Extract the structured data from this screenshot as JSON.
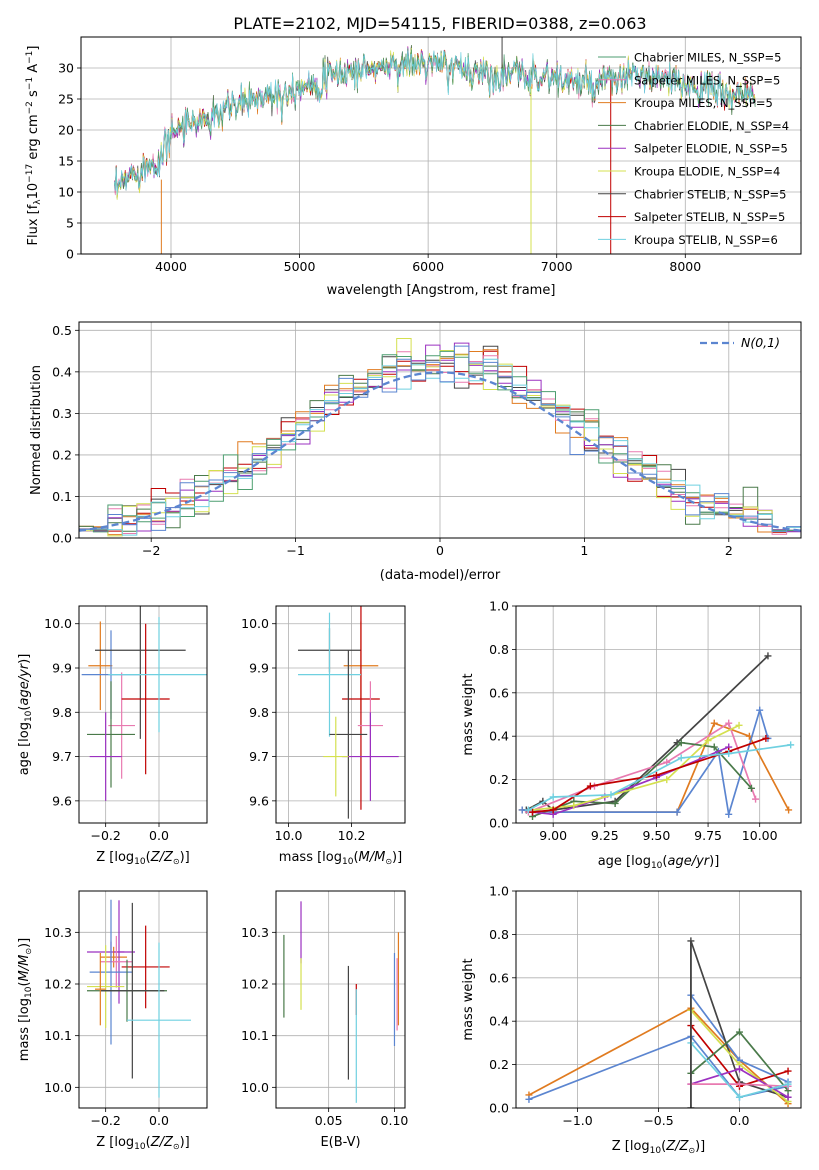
{
  "figure_title": "PLATE=2102, MJD=54115, FIBERID=0388, z=0.063",
  "colors": {
    "chabrier_miles": "#4d9e70",
    "salpeter_miles": "#e87ab0",
    "kroupa_miles": "#e07b20",
    "chabrier_elodie": "#4a7a4a",
    "salpeter_elodie": "#9b30c0",
    "kroupa_elodie": "#d4e050",
    "chabrier_stelib": "#444444",
    "salpeter_stelib": "#c00000",
    "kroupa_stelib": "#6fd0e0",
    "blue": "#5b85d0",
    "gaussian": "#5b85d0",
    "grid": "#b0b0b0"
  },
  "chart_data": [
    {
      "id": "spectrum",
      "type": "line",
      "xlabel": "wavelength [Angstrom, rest frame]",
      "ylabel": "Flux [f_λ 10^-17 erg cm^-2 s^-1 A^-1]",
      "xlim": [
        3300,
        8900
      ],
      "ylim": [
        0,
        35
      ],
      "xticks": [
        4000,
        5000,
        6000,
        7000,
        8000
      ],
      "yticks": [
        0,
        5,
        10,
        15,
        20,
        25,
        30
      ],
      "legend_position": "top-right",
      "legend": [
        {
          "label": "Chabrier MILES, N_SSP=5",
          "color_key": "chabrier_miles"
        },
        {
          "label": "Salpeter MILES, N_SSP=5",
          "color_key": "salpeter_miles"
        },
        {
          "label": "Kroupa MILES, N_SSP=5",
          "color_key": "kroupa_miles"
        },
        {
          "label": "Chabrier ELODIE, N_SSP=4",
          "color_key": "chabrier_elodie"
        },
        {
          "label": "Salpeter ELODIE, N_SSP=5",
          "color_key": "salpeter_elodie"
        },
        {
          "label": "Kroupa ELODIE, N_SSP=4",
          "color_key": "kroupa_elodie"
        },
        {
          "label": "Chabrier STELIB, N_SSP=5",
          "color_key": "chabrier_stelib"
        },
        {
          "label": "Salpeter STELIB, N_SSP=5",
          "color_key": "salpeter_stelib"
        },
        {
          "label": "Kroupa STELIB, N_SSP=6",
          "color_key": "kroupa_stelib"
        }
      ],
      "continuum": [
        [
          3560,
          10
        ],
        [
          3700,
          13
        ],
        [
          3900,
          15
        ],
        [
          3950,
          19
        ],
        [
          4100,
          21
        ],
        [
          4300,
          22
        ],
        [
          4500,
          24
        ],
        [
          4800,
          26
        ],
        [
          5000,
          27
        ],
        [
          5300,
          29
        ],
        [
          5600,
          30
        ],
        [
          5900,
          31
        ],
        [
          6200,
          30
        ],
        [
          6500,
          29
        ],
        [
          6800,
          29
        ],
        [
          7100,
          28
        ],
        [
          7300,
          27
        ],
        [
          7600,
          29
        ],
        [
          7800,
          28
        ],
        [
          8100,
          27
        ],
        [
          8300,
          26
        ],
        [
          8550,
          25
        ]
      ]
    },
    {
      "id": "residual_hist",
      "type": "histogram",
      "xlabel": "(data-model)/error",
      "ylabel": "Normed distribution",
      "xlim": [
        -2.5,
        2.5
      ],
      "ylim": [
        0,
        0.52
      ],
      "xticks": [
        -2,
        -1,
        0,
        1,
        2
      ],
      "yticks": [
        0.0,
        0.1,
        0.2,
        0.3,
        0.4,
        0.5
      ],
      "gaussian_label": "N(0,1)",
      "legend_position": "top-right",
      "bin_width": 0.1
    },
    {
      "id": "age_vs_Z",
      "type": "errorbar",
      "xlabel": "Z [log10(Z/Z_sun)]",
      "ylabel": "age [log10(age/yr)]",
      "xlim": [
        -0.3,
        0.18
      ],
      "ylim": [
        9.55,
        10.04
      ],
      "xticks": [
        -0.2,
        0.0
      ],
      "yticks": [
        9.6,
        9.7,
        9.8,
        9.9,
        10.0
      ],
      "points": [
        {
          "x": -0.22,
          "y": 9.905,
          "xerr": 0.045,
          "yerr": 0.1,
          "color_key": "kroupa_miles"
        },
        {
          "x": -0.18,
          "y": 9.885,
          "xerr": 0.11,
          "yerr": 0.1,
          "color_key": "blue"
        },
        {
          "x": -0.14,
          "y": 9.77,
          "xerr": 0.05,
          "yerr": 0.12,
          "color_key": "salpeter_miles"
        },
        {
          "x": -0.18,
          "y": 9.75,
          "xerr": 0.09,
          "yerr": 0.12,
          "color_key": "chabrier_elodie"
        },
        {
          "x": -0.2,
          "y": 9.7,
          "xerr": 0.06,
          "yerr": 0.1,
          "color_key": "salpeter_elodie"
        },
        {
          "x": -0.07,
          "y": 9.94,
          "xerr": 0.17,
          "yerr": 0.2,
          "color_key": "chabrier_stelib"
        },
        {
          "x": -0.05,
          "y": 9.83,
          "xerr": 0.09,
          "yerr": 0.17,
          "color_key": "salpeter_stelib"
        },
        {
          "x": 0.0,
          "y": 9.885,
          "xerr": 0.19,
          "yerr": 0.13,
          "color_key": "kroupa_stelib"
        }
      ]
    },
    {
      "id": "age_vs_mass",
      "type": "errorbar",
      "xlabel": "mass [log10(M/M_sun)]",
      "ylabel": "",
      "xlim": [
        9.96,
        10.37
      ],
      "ylim": [
        9.55,
        10.04
      ],
      "xticks": [
        10.0,
        10.2
      ],
      "yticks": [
        9.6,
        9.7,
        9.8,
        9.9,
        10.0
      ],
      "points": [
        {
          "x": 10.23,
          "y": 9.905,
          "xerr": 0.055,
          "yerr": 0.1,
          "color_key": "kroupa_miles"
        },
        {
          "x": 10.13,
          "y": 9.94,
          "xerr": 0.1,
          "yerr": 0.05,
          "color_key": "chabrier_stelib"
        },
        {
          "x": 10.23,
          "y": 9.83,
          "xerr": 0.06,
          "yerr": 0.25,
          "color_key": "salpeter_stelib"
        },
        {
          "x": 10.13,
          "y": 9.885,
          "xerr": 0.1,
          "yerr": 0.14,
          "color_key": "kroupa_stelib"
        },
        {
          "x": 10.26,
          "y": 9.77,
          "xerr": 0.04,
          "yerr": 0.1,
          "color_key": "salpeter_miles"
        },
        {
          "x": 10.19,
          "y": 9.75,
          "xerr": 0.06,
          "yerr": 0.19,
          "color_key": "chabrier_stelib"
        },
        {
          "x": 10.26,
          "y": 9.7,
          "xerr": 0.09,
          "yerr": 0.1,
          "color_key": "salpeter_elodie"
        },
        {
          "x": 10.15,
          "y": 9.7,
          "xerr": 0.04,
          "yerr": 0.09,
          "color_key": "kroupa_elodie"
        }
      ]
    },
    {
      "id": "massweight_vs_age",
      "type": "line",
      "xlabel": "age [log10(age/yr)]",
      "ylabel": "mass weight",
      "xlim": [
        8.82,
        10.2
      ],
      "ylim": [
        0,
        1.0
      ],
      "xticks": [
        9.0,
        9.25,
        9.5,
        9.75,
        10.0
      ],
      "yticks": [
        0.0,
        0.2,
        0.4,
        0.6,
        0.8,
        1.0
      ],
      "series": [
        {
          "color_key": "chabrier_stelib",
          "x": [
            8.87,
            8.95,
            9.0,
            9.3,
            9.6,
            10.04
          ],
          "y": [
            0.06,
            0.1,
            0.06,
            0.1,
            0.37,
            0.77
          ]
        },
        {
          "color_key": "kroupa_miles",
          "x": [
            8.85,
            9.0,
            9.6,
            9.78,
            9.95,
            10.14
          ],
          "y": [
            0.06,
            0.05,
            0.05,
            0.46,
            0.4,
            0.06
          ]
        },
        {
          "color_key": "blue",
          "x": [
            8.85,
            9.0,
            9.6,
            9.8,
            9.85,
            10.0,
            10.04
          ],
          "y": [
            0.06,
            0.05,
            0.05,
            0.33,
            0.04,
            0.52,
            0.39
          ]
        },
        {
          "color_key": "salpeter_miles",
          "x": [
            8.88,
            9.2,
            9.55,
            9.85,
            9.98
          ],
          "y": [
            0.05,
            0.17,
            0.28,
            0.46,
            0.11
          ]
        },
        {
          "color_key": "chabrier_elodie",
          "x": [
            8.9,
            9.1,
            9.3,
            9.62,
            9.78,
            9.96
          ],
          "y": [
            0.03,
            0.1,
            0.09,
            0.37,
            0.35,
            0.16
          ]
        },
        {
          "color_key": "salpeter_elodie",
          "x": [
            8.9,
            9.0,
            9.25,
            9.5,
            9.85
          ],
          "y": [
            0.05,
            0.04,
            0.12,
            0.21,
            0.35
          ]
        },
        {
          "color_key": "kroupa_elodie",
          "x": [
            8.9,
            9.1,
            9.55,
            9.75,
            9.9
          ],
          "y": [
            0.06,
            0.08,
            0.2,
            0.38,
            0.45
          ]
        },
        {
          "color_key": "salpeter_stelib",
          "x": [
            8.9,
            9.0,
            9.18,
            9.5,
            9.85,
            10.03
          ],
          "y": [
            0.05,
            0.06,
            0.17,
            0.22,
            0.33,
            0.39
          ]
        },
        {
          "color_key": "kroupa_stelib",
          "x": [
            8.88,
            9.0,
            9.28,
            9.62,
            9.85,
            10.15
          ],
          "y": [
            0.06,
            0.12,
            0.13,
            0.3,
            0.32,
            0.36
          ]
        }
      ]
    },
    {
      "id": "mass_vs_Z",
      "type": "errorbar",
      "xlabel": "Z [log10(Z/Z_sun)]",
      "ylabel": "mass [log10(M/M_sun)]",
      "xlim": [
        -0.3,
        0.18
      ],
      "ylim": [
        9.96,
        10.38
      ],
      "xticks": [
        -0.2,
        0.0
      ],
      "yticks": [
        10.0,
        10.1,
        10.2,
        10.3
      ],
      "points": [
        {
          "x": -0.18,
          "y": 10.262,
          "xerr": 0.09,
          "yerr": 0.02,
          "color_key": "salpeter_elodie"
        },
        {
          "x": -0.17,
          "y": 10.252,
          "xerr": 0.05,
          "yerr": 0.02,
          "color_key": "kroupa_miles"
        },
        {
          "x": -0.15,
          "y": 10.262,
          "xerr": 0.02,
          "yerr": 0.1,
          "color_key": "salpeter_elodie"
        },
        {
          "x": -0.16,
          "y": 10.243,
          "xerr": 0.06,
          "yerr": 0.05,
          "color_key": "salpeter_miles"
        },
        {
          "x": -0.05,
          "y": 10.233,
          "xerr": 0.09,
          "yerr": 0.08,
          "color_key": "salpeter_stelib"
        },
        {
          "x": -0.18,
          "y": 10.223,
          "xerr": 0.08,
          "yerr": 0.14,
          "color_key": "blue"
        },
        {
          "x": -0.2,
          "y": 10.195,
          "xerr": 0.07,
          "yerr": 0.08,
          "color_key": "kroupa_elodie"
        },
        {
          "x": -0.12,
          "y": 10.187,
          "xerr": 0.15,
          "yerr": 0.06,
          "color_key": "chabrier_elodie"
        },
        {
          "x": -0.1,
          "y": 10.187,
          "xerr": 0.12,
          "yerr": 0.17,
          "color_key": "chabrier_stelib"
        },
        {
          "x": 0.0,
          "y": 10.13,
          "xerr": 0.12,
          "yerr": 0.15,
          "color_key": "kroupa_stelib"
        },
        {
          "x": -0.22,
          "y": 10.19,
          "xerr": 0.02,
          "yerr": 0.07,
          "color_key": "kroupa_miles"
        }
      ]
    },
    {
      "id": "mass_vs_EBV",
      "type": "errorbar",
      "xlabel": "E(B-V)",
      "ylabel": "",
      "xlim": [
        0.01,
        0.108
      ],
      "ylim": [
        9.96,
        10.38
      ],
      "xticks": [
        0.05,
        0.1
      ],
      "yticks": [
        10.0,
        10.1,
        10.2,
        10.3
      ],
      "points": [
        {
          "x": 0.016,
          "y": 10.215,
          "xerr": 0,
          "yerr": 0.08,
          "color_key": "chabrier_elodie"
        },
        {
          "x": 0.029,
          "y": 10.3,
          "xerr": 0,
          "yerr": 0.06,
          "color_key": "salpeter_elodie"
        },
        {
          "x": 0.029,
          "y": 10.2,
          "xerr": 0,
          "yerr": 0.05,
          "color_key": "kroupa_elodie"
        },
        {
          "x": 0.065,
          "y": 10.125,
          "xerr": 0,
          "yerr": 0.11,
          "color_key": "chabrier_stelib"
        },
        {
          "x": 0.071,
          "y": 10.17,
          "xerr": 0,
          "yerr": 0.03,
          "color_key": "salpeter_stelib"
        },
        {
          "x": 0.071,
          "y": 10.08,
          "xerr": 0,
          "yerr": 0.11,
          "color_key": "kroupa_stelib"
        },
        {
          "x": 0.1,
          "y": 10.17,
          "xerr": 0,
          "yerr": 0.09,
          "color_key": "blue"
        },
        {
          "x": 0.103,
          "y": 10.21,
          "xerr": 0,
          "yerr": 0.09,
          "color_key": "kroupa_miles"
        },
        {
          "x": 0.102,
          "y": 10.18,
          "xerr": 0,
          "yerr": 0.07,
          "color_key": "salpeter_miles"
        }
      ]
    },
    {
      "id": "massweight_vs_Z",
      "type": "line",
      "xlabel": "Z [log10(Z/Z_sun)]",
      "ylabel": "mass weight",
      "xlim": [
        -1.38,
        0.38
      ],
      "ylim": [
        0,
        1.0
      ],
      "xticks": [
        -1.0,
        -0.5,
        0.0
      ],
      "yticks": [
        0.0,
        0.2,
        0.4,
        0.6,
        0.8,
        1.0
      ],
      "series": [
        {
          "color_key": "kroupa_miles",
          "x": [
            -1.3,
            -0.3,
            0.0,
            0.3
          ],
          "y": [
            0.06,
            0.46,
            0.22,
            0.02
          ]
        },
        {
          "color_key": "blue",
          "x": [
            -1.3,
            -0.3,
            0.0,
            0.3
          ],
          "y": [
            0.04,
            0.33,
            0.05,
            0.1
          ]
        },
        {
          "color_key": "blue",
          "x": [
            -0.3,
            0.0,
            0.3
          ],
          "y": [
            0.52,
            0.22,
            0.12
          ]
        },
        {
          "color_key": "chabrier_stelib",
          "x": [
            -0.3,
            -0.3,
            0.0,
            0.3
          ],
          "y": [
            0.0,
            0.77,
            0.12,
            0.05
          ]
        },
        {
          "color_key": "kroupa_elodie",
          "x": [
            -0.3,
            0.0,
            0.3
          ],
          "y": [
            0.45,
            0.2,
            0.03
          ]
        },
        {
          "color_key": "salpeter_stelib",
          "x": [
            -0.3,
            0.0,
            0.3
          ],
          "y": [
            0.38,
            0.1,
            0.17
          ]
        },
        {
          "color_key": "chabrier_elodie",
          "x": [
            -0.3,
            0.0,
            0.3
          ],
          "y": [
            0.16,
            0.35,
            0.08
          ]
        },
        {
          "color_key": "salpeter_elodie",
          "x": [
            -0.3,
            0.0,
            0.3
          ],
          "y": [
            0.11,
            0.18,
            0.05
          ]
        },
        {
          "color_key": "salpeter_miles",
          "x": [
            -0.3,
            0.0,
            0.3
          ],
          "y": [
            0.11,
            0.11,
            0.1
          ]
        },
        {
          "color_key": "kroupa_stelib",
          "x": [
            -0.3,
            0.0,
            0.3
          ],
          "y": [
            0.3,
            0.05,
            0.11
          ]
        }
      ],
      "vertical_errorbar": {
        "x": -0.3,
        "y": 0.38,
        "yerr": 0.39,
        "color_key": "chabrier_stelib"
      }
    }
  ]
}
